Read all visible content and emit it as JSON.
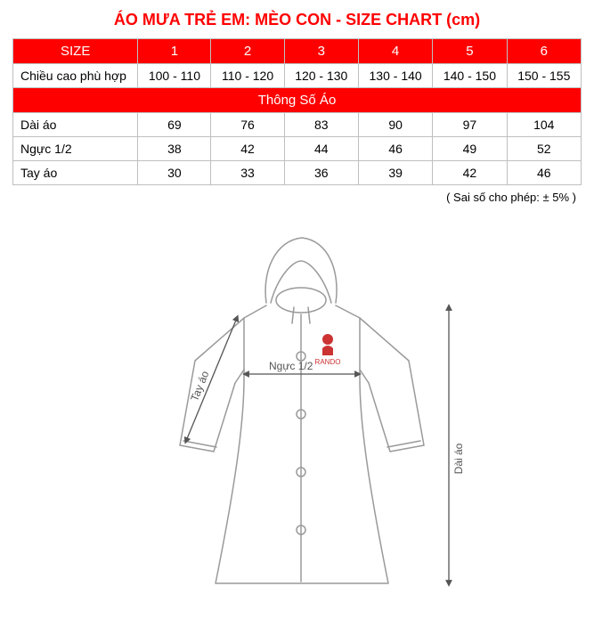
{
  "title_color": "#ff0000",
  "title": "ÁO MƯA TRẺ EM: MÈO CON - SIZE CHART  (cm)",
  "table": {
    "header_bg": "#ff0000",
    "header_fg": "#ffffff",
    "border_color": "#bfbfbf",
    "size_label": "SIZE",
    "sizes": [
      "1",
      "2",
      "3",
      "4",
      "5",
      "6"
    ],
    "height_row": {
      "label": "Chiều cao phù hợp",
      "values": [
        "100 - 110",
        "110 - 120",
        "120 - 130",
        "130 - 140",
        "140 - 150",
        "150 - 155"
      ]
    },
    "section_label": "Thông Số Áo",
    "measure_rows": [
      {
        "label": "Dài áo",
        "values": [
          "69",
          "76",
          "83",
          "90",
          "97",
          "104"
        ]
      },
      {
        "label": "Ngực 1/2",
        "values": [
          "38",
          "42",
          "44",
          "46",
          "49",
          "52"
        ]
      },
      {
        "label": "Tay áo",
        "values": [
          "30",
          "33",
          "36",
          "39",
          "42",
          "46"
        ]
      }
    ],
    "col_label_width_pct": 22
  },
  "footnote": "( Sai số cho phép: ± 5% )",
  "diagram": {
    "stroke": "#9a9a9a",
    "stroke_width": 1.5,
    "arrow_stroke": "#555555",
    "label_color": "#555555",
    "logo_color": "#cc3333",
    "label_dai_ao": "Dài áo",
    "label_nguc": "Ngực 1/2",
    "label_tay_ao": "Tay áo",
    "logo_text": "RANDO"
  }
}
